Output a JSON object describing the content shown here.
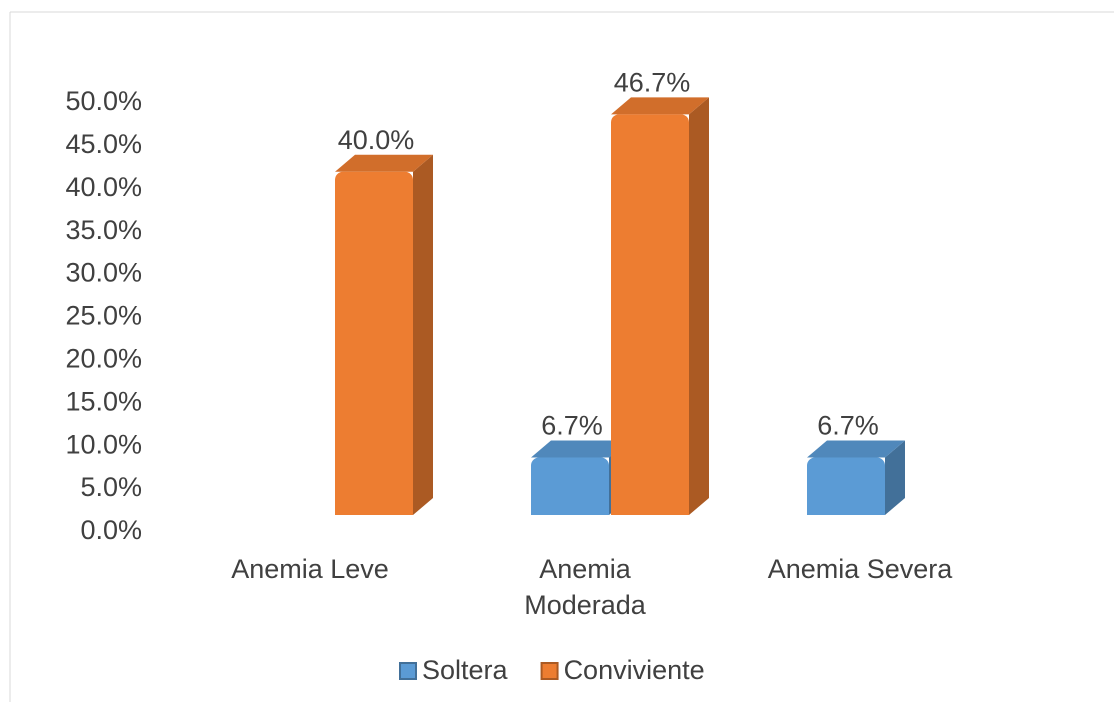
{
  "chart_data": {
    "type": "bar3d",
    "categories": [
      "Anemia Leve",
      "Anemia Moderada",
      "Anemia Severa"
    ],
    "series": [
      {
        "name": "Soltera",
        "color": "#5b9bd5",
        "values": [
          null,
          6.7,
          6.7
        ],
        "value_labels": [
          null,
          "6.7%",
          "6.7%"
        ]
      },
      {
        "name": "Conviviente",
        "color": "#ed7d31",
        "values": [
          40.0,
          46.7,
          null
        ],
        "value_labels": [
          "40.0%",
          "46.7%",
          null
        ]
      }
    ],
    "ylim": [
      0,
      50
    ],
    "yticks": [
      {
        "value": 0,
        "label": "0.0%"
      },
      {
        "value": 5,
        "label": "5.0%"
      },
      {
        "value": 10,
        "label": "10.0%"
      },
      {
        "value": 15,
        "label": "15.0%"
      },
      {
        "value": 20,
        "label": "20.0%"
      },
      {
        "value": 25,
        "label": "25.0%"
      },
      {
        "value": 30,
        "label": "30.0%"
      },
      {
        "value": 35,
        "label": "35.0%"
      },
      {
        "value": 40,
        "label": "40.0%"
      },
      {
        "value": 45,
        "label": "45.0%"
      },
      {
        "value": 50,
        "label": "50.0%"
      }
    ],
    "legend": "bottom"
  }
}
